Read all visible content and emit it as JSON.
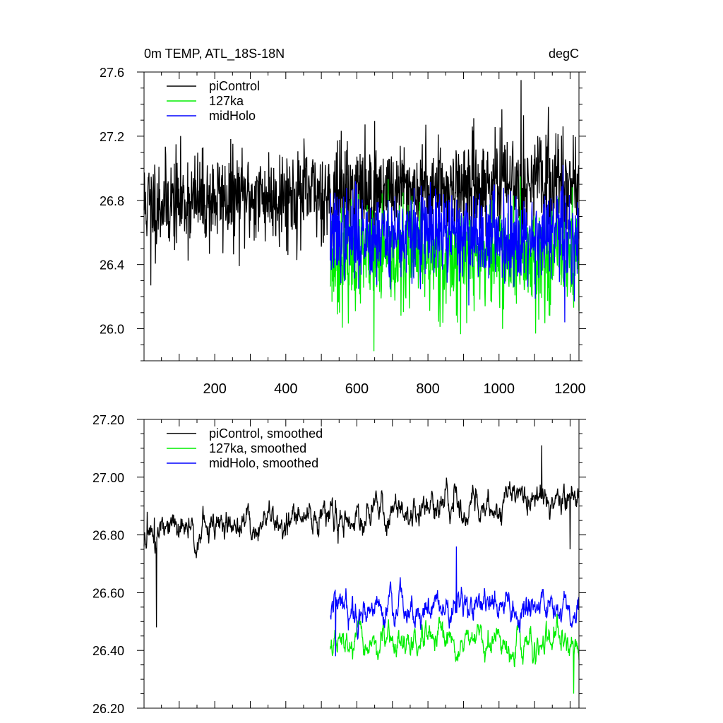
{
  "chart_data": [
    {
      "type": "line",
      "title_left": "0m TEMP, ATL_18S-18N",
      "title_right": "degC",
      "xlim": [
        1,
        1225
      ],
      "ylim": [
        25.8,
        27.6
      ],
      "x_ticks": [
        200,
        400,
        600,
        800,
        1000,
        1200
      ],
      "x_tick_labels": [
        "200",
        "400",
        "600",
        "800",
        "1000",
        "1200"
      ],
      "y_ticks": [
        26.0,
        26.4,
        26.8,
        27.2,
        27.6
      ],
      "y_tick_labels": [
        "26.0",
        "26.4",
        "26.8",
        "27.2",
        "27.6"
      ],
      "legend_position": "top-left",
      "grid": false,
      "series": [
        {
          "name": "piControl",
          "color": "#000000",
          "x_start": 1,
          "x_end": 1225,
          "base": 26.78,
          "trend": 0.15,
          "spread": 0.15,
          "seed": 11,
          "max": {
            "x": 1062,
            "y": 27.55
          },
          "min": {
            "x": 20,
            "y": 26.27
          }
        },
        {
          "name": "127ka",
          "color": "#00ee00",
          "x_start": 525,
          "x_end": 1225,
          "base": 26.44,
          "trend": 0.0,
          "spread": 0.16,
          "seed": 23,
          "max": {
            "x": 1060,
            "y": 26.95
          },
          "min": {
            "x": 648,
            "y": 25.86
          }
        },
        {
          "name": "midHolo",
          "color": "#0000ff",
          "x_start": 525,
          "x_end": 1225,
          "base": 26.58,
          "trend": 0.0,
          "spread": 0.14,
          "seed": 37,
          "max": {
            "x": 1180,
            "y": 27.02
          },
          "min": {
            "x": 1185,
            "y": 26.04
          }
        }
      ]
    },
    {
      "type": "line",
      "xlim": [
        1,
        1225
      ],
      "ylim": [
        26.2,
        27.2
      ],
      "x_ticks": [
        200,
        400,
        600,
        800,
        1000,
        1200
      ],
      "y_ticks": [
        26.2,
        26.4,
        26.6,
        26.8,
        27.0,
        27.2
      ],
      "y_tick_labels": [
        "26.20",
        "26.40",
        "26.60",
        "26.80",
        "27.00",
        "27.20"
      ],
      "legend_position": "top-left",
      "grid": false,
      "series": [
        {
          "name": "piControl, smoothed",
          "color": "#000000",
          "x_start": 1,
          "x_end": 1225,
          "base": 26.8,
          "trend": 0.14,
          "spread": 0.07,
          "seed": 51,
          "start_points": [
            {
              "x": 1,
              "y": 26.76
            },
            {
              "x": 10,
              "y": 26.88
            },
            {
              "x": 30,
              "y": 26.86
            },
            {
              "x": 36,
              "y": 26.48
            }
          ],
          "max": {
            "x": 1120,
            "y": 27.11
          },
          "end": {
            "x": 1200,
            "y": 26.75
          }
        },
        {
          "name": "127ka, smoothed",
          "color": "#00ee00",
          "x_start": 525,
          "x_end": 1225,
          "base": 26.42,
          "trend": 0.0,
          "spread": 0.06,
          "seed": 67,
          "min": {
            "x": 1210,
            "y": 26.25
          }
        },
        {
          "name": "midHolo, smoothed",
          "color": "#0000ff",
          "x_start": 525,
          "x_end": 1225,
          "base": 26.55,
          "trend": 0.0,
          "spread": 0.07,
          "seed": 79,
          "max": {
            "x": 880,
            "y": 26.76
          },
          "min": {
            "x": 540,
            "y": 26.38
          }
        }
      ]
    }
  ]
}
